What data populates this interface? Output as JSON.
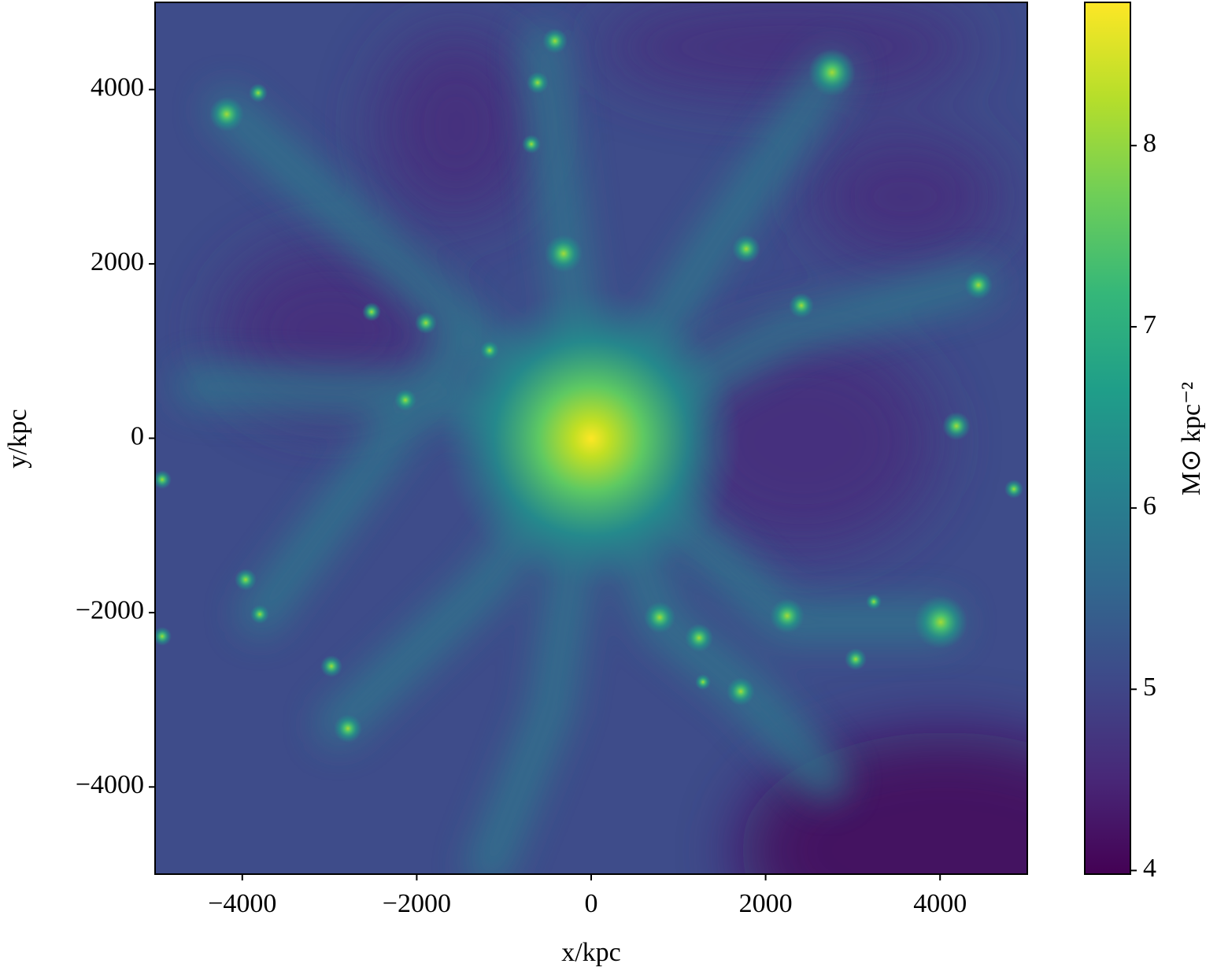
{
  "chart_data": {
    "type": "image",
    "xlabel": "x/kpc",
    "ylabel": "y/kpc",
    "xlim": [
      -5000,
      5000
    ],
    "ylim": [
      -5000,
      5000
    ],
    "xticks": [
      {
        "value": -4000,
        "label": "−4000"
      },
      {
        "value": -2000,
        "label": "−2000"
      },
      0,
      2000,
      4000
    ],
    "yticks": [
      {
        "value": -4000,
        "label": "−4000"
      },
      {
        "value": -2000,
        "label": "−2000"
      },
      0,
      2000,
      4000
    ],
    "colorbar": {
      "label": "M⊙ kpc⁻²",
      "clim": [
        3.98,
        8.79
      ],
      "ticks": [
        4,
        5,
        6,
        7,
        8
      ],
      "colormap": "viridis"
    }
  }
}
